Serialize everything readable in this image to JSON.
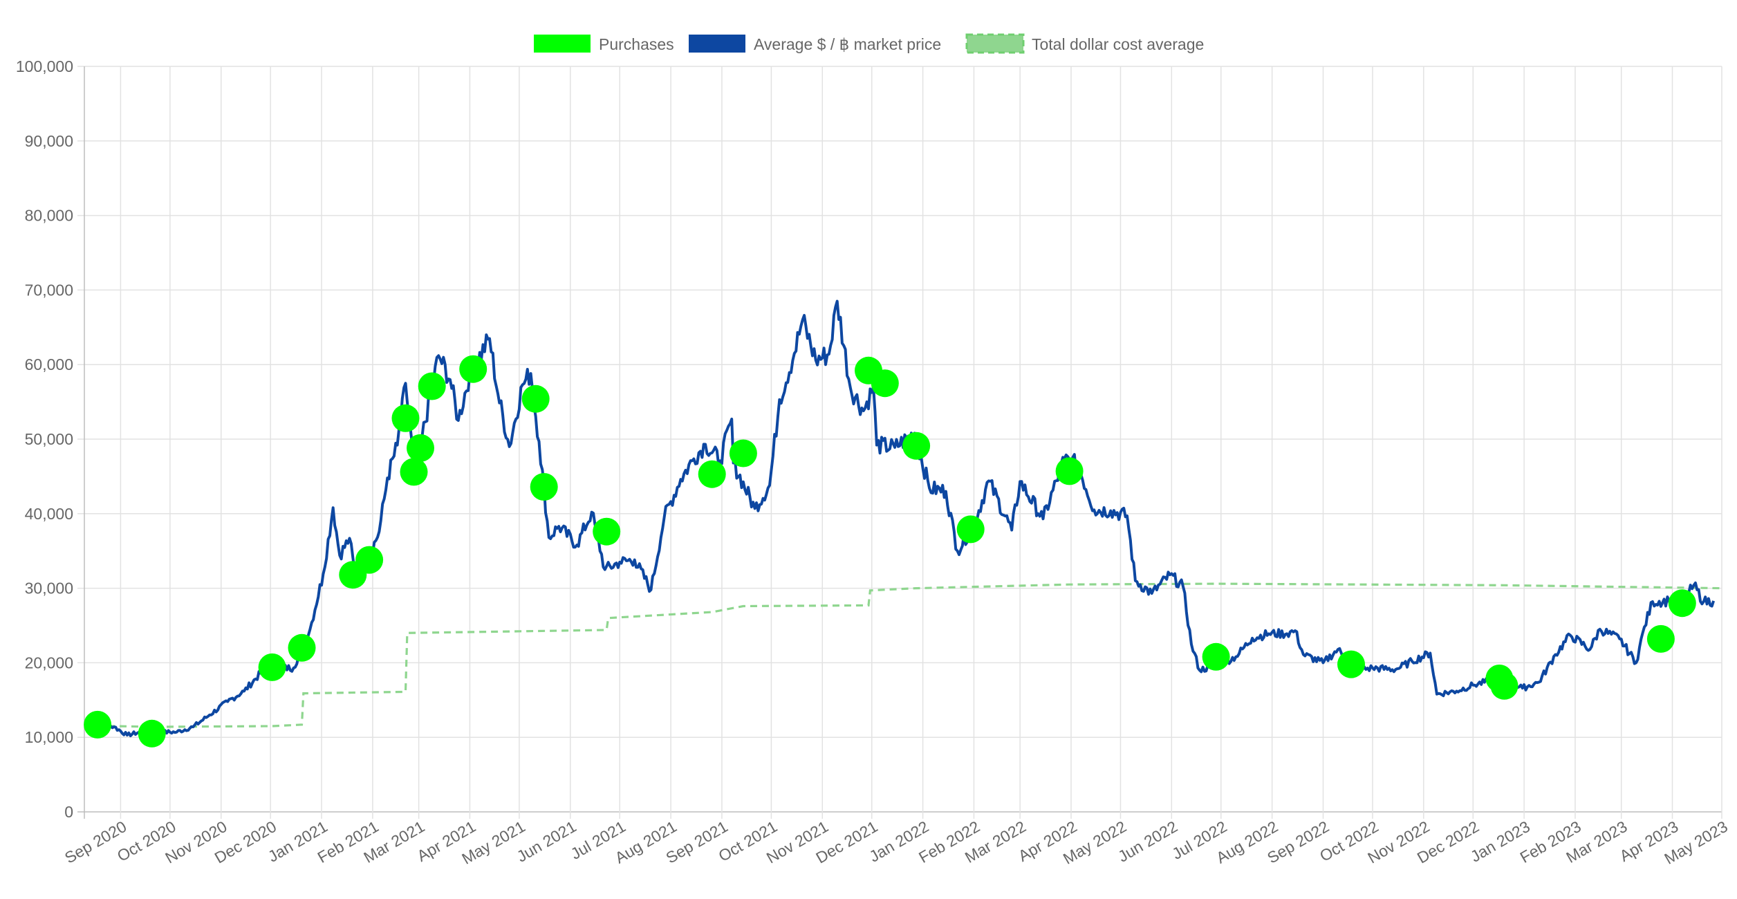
{
  "chart_data": {
    "type": "line",
    "title": "",
    "xlabel": "",
    "ylabel": "",
    "ylim": [
      0,
      100000
    ],
    "xlim": [
      "2020-08-10",
      "2023-05-01"
    ],
    "grid": true,
    "legend_position": "top-center",
    "yticks": [
      0,
      10000,
      20000,
      30000,
      40000,
      50000,
      60000,
      70000,
      80000,
      90000,
      100000
    ],
    "ytick_labels": [
      "0",
      "10,000",
      "20,000",
      "30,000",
      "40,000",
      "50,000",
      "60,000",
      "70,000",
      "80,000",
      "90,000",
      "100,000"
    ],
    "xticks": [
      "2020-09-01",
      "2020-10-01",
      "2020-11-01",
      "2020-12-01",
      "2021-01-01",
      "2021-02-01",
      "2021-03-01",
      "2021-04-01",
      "2021-05-01",
      "2021-06-01",
      "2021-07-01",
      "2021-08-01",
      "2021-09-01",
      "2021-10-01",
      "2021-11-01",
      "2021-12-01",
      "2022-01-01",
      "2022-02-01",
      "2022-03-01",
      "2022-04-01",
      "2022-05-01",
      "2022-06-01",
      "2022-07-01",
      "2022-08-01",
      "2022-09-01",
      "2022-10-01",
      "2022-11-01",
      "2022-12-01",
      "2023-01-01",
      "2023-02-01",
      "2023-03-01",
      "2023-04-01",
      "2023-05-01"
    ],
    "xtick_labels": [
      "Sep 2020",
      "Oct 2020",
      "Nov 2020",
      "Dec 2020",
      "Jan 2021",
      "Feb 2021",
      "Mar 2021",
      "Apr 2021",
      "May 2021",
      "Jun 2021",
      "Jul 2021",
      "Aug 2021",
      "Sep 2021",
      "Oct 2021",
      "Nov 2021",
      "Dec 2021",
      "Jan 2022",
      "Feb 2022",
      "Mar 2022",
      "Apr 2022",
      "May 2022",
      "Jun 2022",
      "Jul 2022",
      "Aug 2022",
      "Sep 2022",
      "Oct 2022",
      "Nov 2022",
      "Dec 2022",
      "Jan 2023",
      "Feb 2023",
      "Mar 2023",
      "Apr 2023",
      "May 2023"
    ],
    "legend": [
      {
        "label": "Purchases",
        "color": "#00ff00",
        "style": "solid"
      },
      {
        "label": "Average $ / ฿ market price",
        "color": "#0d47a1",
        "style": "solid"
      },
      {
        "label": "Total dollar cost average",
        "color": "#8fd68f",
        "style": "dashed"
      }
    ],
    "series": [
      {
        "name": "Purchases",
        "kind": "scatter",
        "color": "#00ff00",
        "points": [
          [
            "2020-08-18",
            11700
          ],
          [
            "2020-09-20",
            10500
          ],
          [
            "2020-12-02",
            19400
          ],
          [
            "2020-12-20",
            22000
          ],
          [
            "2021-01-20",
            31800
          ],
          [
            "2021-01-30",
            33800
          ],
          [
            "2021-02-21",
            52800
          ],
          [
            "2021-02-26",
            45600
          ],
          [
            "2021-03-02",
            48800
          ],
          [
            "2021-03-09",
            57100
          ],
          [
            "2021-04-03",
            59400
          ],
          [
            "2021-05-11",
            55400
          ],
          [
            "2021-05-16",
            43600
          ],
          [
            "2021-06-23",
            37600
          ],
          [
            "2021-08-26",
            45300
          ],
          [
            "2021-09-14",
            48100
          ],
          [
            "2021-11-29",
            59200
          ],
          [
            "2021-12-09",
            57500
          ],
          [
            "2021-12-28",
            49100
          ],
          [
            "2022-01-30",
            37900
          ],
          [
            "2022-03-31",
            45700
          ],
          [
            "2022-06-28",
            20800
          ],
          [
            "2022-09-18",
            19800
          ],
          [
            "2022-12-17",
            17900
          ],
          [
            "2022-12-20",
            16900
          ],
          [
            "2023-03-25",
            23200
          ],
          [
            "2023-04-07",
            28000
          ]
        ]
      },
      {
        "name": "Average $ / ฿ market price",
        "kind": "line",
        "color": "#0d47a1",
        "points": [
          [
            "2020-08-10",
            11500
          ],
          [
            "2020-08-18",
            11800
          ],
          [
            "2020-08-28",
            11400
          ],
          [
            "2020-09-05",
            10300
          ],
          [
            "2020-09-15",
            10800
          ],
          [
            "2020-09-25",
            10700
          ],
          [
            "2020-10-05",
            10700
          ],
          [
            "2020-10-15",
            11400
          ],
          [
            "2020-10-25",
            13000
          ],
          [
            "2020-11-05",
            14800
          ],
          [
            "2020-11-15",
            16200
          ],
          [
            "2020-11-25",
            18600
          ],
          [
            "2020-12-05",
            19300
          ],
          [
            "2020-12-15",
            19300
          ],
          [
            "2020-12-25",
            24500
          ],
          [
            "2021-01-02",
            31900
          ],
          [
            "2021-01-08",
            40800
          ],
          [
            "2021-01-12",
            34400
          ],
          [
            "2021-01-18",
            36700
          ],
          [
            "2021-01-22",
            30800
          ],
          [
            "2021-01-28",
            33300
          ],
          [
            "2021-02-05",
            37600
          ],
          [
            "2021-02-10",
            44800
          ],
          [
            "2021-02-16",
            49200
          ],
          [
            "2021-02-21",
            57500
          ],
          [
            "2021-02-26",
            46300
          ],
          [
            "2021-03-03",
            50300
          ],
          [
            "2021-03-13",
            61200
          ],
          [
            "2021-03-20",
            58000
          ],
          [
            "2021-03-25",
            52500
          ],
          [
            "2021-04-01",
            58800
          ],
          [
            "2021-04-13",
            63500
          ],
          [
            "2021-04-18",
            56100
          ],
          [
            "2021-04-25",
            49000
          ],
          [
            "2021-05-03",
            57300
          ],
          [
            "2021-05-08",
            58800
          ],
          [
            "2021-05-13",
            49700
          ],
          [
            "2021-05-19",
            36800
          ],
          [
            "2021-05-25",
            38300
          ],
          [
            "2021-06-05",
            35800
          ],
          [
            "2021-06-14",
            40200
          ],
          [
            "2021-06-22",
            32500
          ],
          [
            "2021-07-01",
            33500
          ],
          [
            "2021-07-10",
            33800
          ],
          [
            "2021-07-20",
            29800
          ],
          [
            "2021-07-28",
            39500
          ],
          [
            "2021-08-07",
            44600
          ],
          [
            "2021-08-14",
            47100
          ],
          [
            "2021-08-22",
            49300
          ],
          [
            "2021-08-31",
            47100
          ],
          [
            "2021-09-07",
            52700
          ],
          [
            "2021-09-08",
            46800
          ],
          [
            "2021-09-21",
            40700
          ],
          [
            "2021-09-30",
            43800
          ],
          [
            "2021-10-06",
            55300
          ],
          [
            "2021-10-15",
            61500
          ],
          [
            "2021-10-20",
            66000
          ],
          [
            "2021-10-28",
            60600
          ],
          [
            "2021-11-05",
            61400
          ],
          [
            "2021-11-10",
            68500
          ],
          [
            "2021-11-18",
            56900
          ],
          [
            "2021-11-26",
            53800
          ],
          [
            "2021-12-02",
            57000
          ],
          [
            "2021-12-04",
            49200
          ],
          [
            "2021-12-15",
            48900
          ],
          [
            "2021-12-27",
            50800
          ],
          [
            "2022-01-05",
            43400
          ],
          [
            "2022-01-15",
            43000
          ],
          [
            "2022-01-22",
            35000
          ],
          [
            "2022-02-01",
            38500
          ],
          [
            "2022-02-10",
            44400
          ],
          [
            "2022-02-24",
            37800
          ],
          [
            "2022-03-01",
            44300
          ],
          [
            "2022-03-15",
            39300
          ],
          [
            "2022-03-28",
            47400
          ],
          [
            "2022-04-05",
            46600
          ],
          [
            "2022-04-15",
            40500
          ],
          [
            "2022-04-25",
            40400
          ],
          [
            "2022-05-05",
            39700
          ],
          [
            "2022-05-10",
            31000
          ],
          [
            "2022-05-20",
            29300
          ],
          [
            "2022-05-31",
            31800
          ],
          [
            "2022-06-08",
            30200
          ],
          [
            "2022-06-13",
            22500
          ],
          [
            "2022-06-18",
            19000
          ],
          [
            "2022-06-30",
            19800
          ],
          [
            "2022-07-10",
            20800
          ],
          [
            "2022-07-20",
            23300
          ],
          [
            "2022-07-30",
            23900
          ],
          [
            "2022-08-10",
            23900
          ],
          [
            "2022-08-15",
            24300
          ],
          [
            "2022-08-20",
            21100
          ],
          [
            "2022-09-01",
            20000
          ],
          [
            "2022-09-10",
            21800
          ],
          [
            "2022-09-20",
            19000
          ],
          [
            "2022-10-01",
            19300
          ],
          [
            "2022-10-15",
            19100
          ],
          [
            "2022-10-25",
            20200
          ],
          [
            "2022-11-05",
            21300
          ],
          [
            "2022-11-09",
            15800
          ],
          [
            "2022-11-21",
            16200
          ],
          [
            "2022-12-01",
            17000
          ],
          [
            "2022-12-15",
            17800
          ],
          [
            "2022-12-31",
            16600
          ],
          [
            "2023-01-10",
            17400
          ],
          [
            "2023-01-20",
            21100
          ],
          [
            "2023-01-29",
            23700
          ],
          [
            "2023-02-10",
            21800
          ],
          [
            "2023-02-16",
            24500
          ],
          [
            "2023-02-28",
            23200
          ],
          [
            "2023-03-10",
            20000
          ],
          [
            "2023-03-15",
            24800
          ],
          [
            "2023-03-20",
            28200
          ],
          [
            "2023-03-30",
            28300
          ],
          [
            "2023-04-07",
            27900
          ],
          [
            "2023-04-14",
            30400
          ],
          [
            "2023-04-20",
            28200
          ],
          [
            "2023-04-26",
            28300
          ]
        ]
      },
      {
        "name": "Total dollar cost average",
        "kind": "step",
        "color": "#8fd68f",
        "points": [
          [
            "2020-08-10",
            11600
          ],
          [
            "2020-09-20",
            11400
          ],
          [
            "2020-12-02",
            11500
          ],
          [
            "2020-12-20",
            11700
          ],
          [
            "2020-12-21",
            15900
          ],
          [
            "2021-02-21",
            16100
          ],
          [
            "2021-02-22",
            24000
          ],
          [
            "2021-06-23",
            24400
          ],
          [
            "2021-06-24",
            26000
          ],
          [
            "2021-08-26",
            26800
          ],
          [
            "2021-09-14",
            27600
          ],
          [
            "2021-11-29",
            27700
          ],
          [
            "2021-11-30",
            29700
          ],
          [
            "2021-12-28",
            30000
          ],
          [
            "2022-03-31",
            30500
          ],
          [
            "2022-06-28",
            30600
          ],
          [
            "2022-12-20",
            30400
          ],
          [
            "2023-05-01",
            30000
          ]
        ]
      }
    ]
  }
}
